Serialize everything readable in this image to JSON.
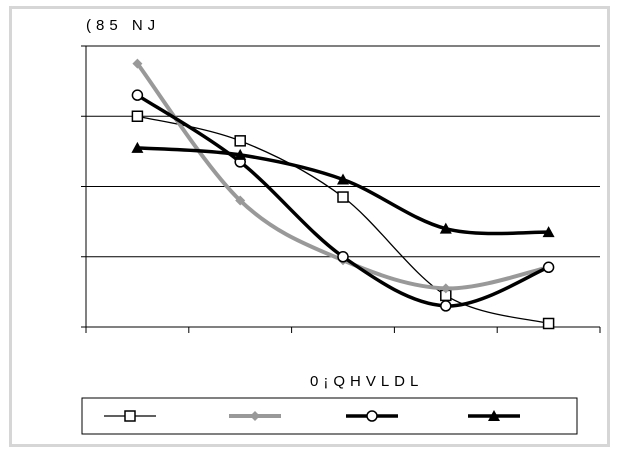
{
  "chart_data": {
    "type": "line",
    "title": "",
    "ylabel": "(85 NJ",
    "xlabel": "0¡QHVLDL",
    "x": [
      1,
      2,
      3,
      4,
      5
    ],
    "xlim": [
      0,
      5
    ],
    "ylim": [
      0,
      4
    ],
    "yticks": [
      0,
      1,
      2,
      3,
      4
    ],
    "grid": true,
    "legend_position": "bottom",
    "series": [
      {
        "color": "#000000",
        "marker": "square",
        "line_weight": "thin",
        "values": [
          3.0,
          2.65,
          1.85,
          0.45,
          0.05
        ]
      },
      {
        "color": "#999999",
        "marker": "diamond",
        "line_weight": "thick",
        "values": [
          3.75,
          1.8,
          0.95,
          0.55,
          0.85
        ]
      },
      {
        "color": "#000000",
        "marker": "circle",
        "line_weight": "thick",
        "values": [
          3.3,
          2.35,
          1.0,
          0.3,
          0.85
        ]
      },
      {
        "color": "#000000",
        "marker": "triangle",
        "line_weight": "thick",
        "values": [
          2.55,
          2.45,
          2.1,
          1.4,
          1.35
        ]
      }
    ]
  }
}
